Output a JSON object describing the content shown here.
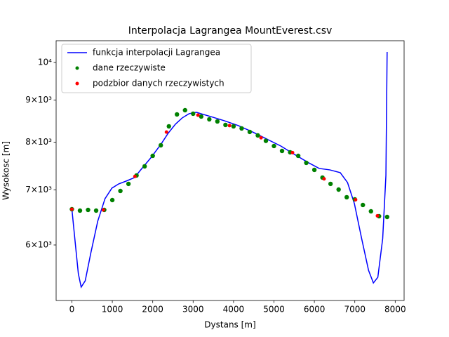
{
  "chart_data": {
    "type": "line",
    "title": "Interpolacja Lagrangea MountEverest.csv",
    "x_label": "Dystans [m]",
    "y_label": "Wysokosc [m]",
    "log_y": true,
    "xlim": [
      -390,
      8220
    ],
    "ylim": [
      5137,
      10627
    ],
    "xticks": [
      0,
      1000,
      2000,
      3000,
      4000,
      5000,
      6000,
      7000,
      8000
    ],
    "yticks": [
      {
        "value": 6000,
        "label": "6×10³"
      },
      {
        "value": 7000,
        "label": "7×10³"
      },
      {
        "value": 8000,
        "label": "8×10³"
      },
      {
        "value": 9000,
        "label": "9×10³"
      },
      {
        "value": 10000,
        "label": "10⁴"
      }
    ],
    "legend": "upper left",
    "series": [
      {
        "name": "funkcja interpolacji Lagrangea",
        "type": "line",
        "color": "#0000ff",
        "x": [
          0,
          90,
          160,
          230,
          330,
          470,
          640,
          820,
          990,
          1160,
          1340,
          1550,
          1690,
          1950,
          2210,
          2380,
          2560,
          2730,
          2900,
          3080,
          3250,
          3430,
          3770,
          4120,
          4470,
          4820,
          5170,
          5510,
          5860,
          6120,
          6380,
          6640,
          6820,
          6990,
          7170,
          7340,
          7460,
          7570,
          7690,
          7770,
          7800
        ],
        "values": [
          6632,
          5989,
          5536,
          5333,
          5428,
          5872,
          6415,
          6831,
          7035,
          7119,
          7174,
          7246,
          7390,
          7654,
          7962,
          8200,
          8412,
          8563,
          8664,
          8698,
          8647,
          8596,
          8496,
          8379,
          8233,
          8072,
          7915,
          7730,
          7551,
          7433,
          7404,
          7346,
          7146,
          6737,
          6107,
          5590,
          5396,
          5482,
          6107,
          7289,
          10299
        ]
      },
      {
        "name": "dane rzeczywiste",
        "type": "scatter",
        "color": "#008000",
        "x": [
          0,
          200,
          400,
          600,
          800,
          1000,
          1200,
          1400,
          1600,
          1800,
          2000,
          2200,
          2400,
          2600,
          2800,
          3000,
          3200,
          3400,
          3600,
          3800,
          4000,
          4200,
          4400,
          4600,
          4800,
          5000,
          5200,
          5400,
          5600,
          5800,
          6000,
          6200,
          6400,
          6600,
          6800,
          7000,
          7200,
          7400,
          7600,
          7800
        ],
        "values": [
          6632,
          6606,
          6619,
          6606,
          6619,
          6804,
          6980,
          7119,
          7289,
          7477,
          7700,
          7931,
          8363,
          8647,
          8749,
          8664,
          8596,
          8529,
          8479,
          8396,
          8363,
          8314,
          8233,
          8154,
          8030,
          7915,
          7807,
          7777,
          7700,
          7551,
          7404,
          7246,
          7119,
          7007,
          6858,
          6818,
          6711,
          6593,
          6503,
          6490
        ]
      },
      {
        "name": "podzbior danych rzeczywistych",
        "type": "scatter",
        "color": "#ff0000",
        "x": [
          0,
          780,
          1560,
          2340,
          3120,
          3900,
          4680,
          5460,
          6240,
          7020,
          7560
        ],
        "values": [
          6632,
          6619,
          7270,
          8230,
          8630,
          8380,
          8100,
          7770,
          7220,
          6810,
          6510
        ]
      }
    ]
  }
}
